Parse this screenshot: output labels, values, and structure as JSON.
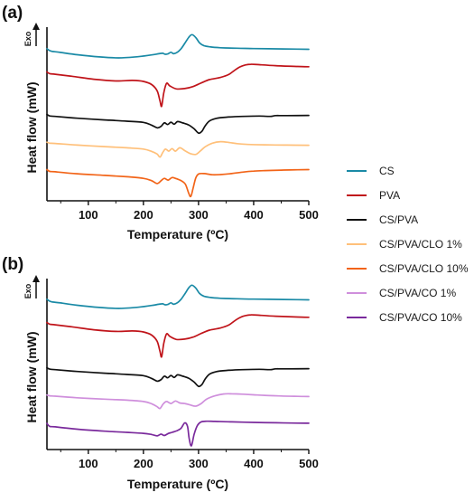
{
  "panels": [
    {
      "label": "(a)",
      "exo_label": "Exo",
      "legend": [
        "CS",
        "PVA",
        "CS/PVA",
        "CS/PVA/CLO 1%",
        "CS/PVA/CLO 10%"
      ]
    },
    {
      "label": "(b)",
      "exo_label": "Exo",
      "legend": [
        "CS",
        "PVA",
        "CS/PVA",
        "CS/PVA/CO 1%",
        "CS/PVA/CO 10%"
      ]
    }
  ],
  "legend": {
    "items": [
      {
        "label": "CS",
        "color": "#1a8aa6"
      },
      {
        "label": "PVA",
        "color": "#c0141a"
      },
      {
        "label": "CS/PVA",
        "color": "#111111"
      },
      {
        "label": "CS/PVA/CLO 1%",
        "color": "#ffc07a"
      },
      {
        "label": "CS/PVA/CLO 10%",
        "color": "#f26418"
      },
      {
        "label": "CS/PVA/CO 1%",
        "color": "#cf8fdc"
      },
      {
        "label": "CS/PVA/CO 10%",
        "color": "#7a2a9c"
      }
    ]
  },
  "chart_data": [
    {
      "type": "line",
      "title": "(a)",
      "xlabel": "Temperature (ºC)",
      "ylabel": "Heat flow (mW)",
      "xlim": [
        25,
        500
      ],
      "xticks": [
        100,
        200,
        300,
        400,
        500
      ],
      "y_ticks_shown": false,
      "arrow_label": "Exo",
      "grid": false,
      "legend_position": "right",
      "series": [
        {
          "name": "CS",
          "color": "#1a8aa6",
          "x": [
            25,
            30,
            35,
            50,
            80,
            120,
            155,
            190,
            215,
            228,
            235,
            240,
            245,
            250,
            255,
            262,
            268,
            275,
            282,
            288,
            295,
            302,
            310,
            322,
            340,
            370,
            400,
            440,
            480,
            500
          ],
          "y": [
            0.93,
            0.73,
            0.65,
            0.55,
            0.32,
            0.1,
            0.0,
            0.12,
            0.3,
            0.42,
            0.46,
            0.36,
            0.42,
            0.56,
            0.42,
            0.58,
            0.9,
            1.45,
            2.05,
            2.34,
            2.05,
            1.5,
            1.22,
            1.1,
            1.02,
            0.97,
            0.94,
            0.91,
            0.88,
            0.86
          ]
        },
        {
          "name": "PVA",
          "color": "#c0141a",
          "x": [
            25,
            30,
            40,
            70,
            110,
            150,
            180,
            200,
            215,
            225,
            230,
            233,
            237,
            242,
            248,
            260,
            275,
            290,
            305,
            320,
            340,
            355,
            365,
            375,
            385,
            395,
            410,
            440,
            480,
            500
          ],
          "y": [
            0.95,
            0.78,
            0.72,
            0.52,
            0.22,
            0.05,
            0.1,
            0.0,
            -0.32,
            -0.95,
            -1.95,
            -2.5,
            -1.15,
            -0.2,
            -0.45,
            -0.75,
            -0.72,
            -0.52,
            -0.15,
            0.18,
            0.4,
            0.7,
            1.1,
            1.45,
            1.65,
            1.72,
            1.68,
            1.58,
            1.5,
            1.47
          ]
        },
        {
          "name": "CS/PVA",
          "color": "#111111",
          "x": [
            25,
            30,
            40,
            80,
            130,
            170,
            200,
            215,
            225,
            232,
            238,
            244,
            250,
            256,
            262,
            272,
            282,
            292,
            300,
            306,
            312,
            320,
            332,
            350,
            380,
            410,
            430,
            440,
            460,
            500
          ],
          "y": [
            0.5,
            0.35,
            0.3,
            0.12,
            -0.05,
            -0.18,
            -0.3,
            -0.58,
            -0.85,
            -0.7,
            -0.35,
            -0.52,
            -0.28,
            -0.48,
            -0.22,
            -0.36,
            -0.55,
            -0.95,
            -1.38,
            -1.2,
            -0.65,
            -0.15,
            0.1,
            0.22,
            0.3,
            0.34,
            0.3,
            0.38,
            0.38,
            0.4
          ]
        },
        {
          "name": "CS/PVA/CLO 1%",
          "color": "#ffc07a",
          "x": [
            25,
            30,
            40,
            80,
            130,
            170,
            200,
            215,
            225,
            230,
            235,
            240,
            246,
            252,
            258,
            266,
            275,
            285,
            295,
            303,
            312,
            325,
            340,
            355,
            370,
            390,
            420,
            460,
            500
          ],
          "y": [
            0.35,
            0.25,
            0.22,
            0.05,
            -0.1,
            -0.22,
            -0.35,
            -0.58,
            -0.85,
            -1.15,
            -0.7,
            -0.35,
            -0.55,
            -0.3,
            -0.55,
            -0.22,
            -0.5,
            -0.8,
            -0.88,
            -0.55,
            -0.12,
            0.25,
            0.4,
            0.32,
            0.2,
            0.12,
            0.08,
            0.05,
            0.04
          ]
        },
        {
          "name": "CS/PVA/CLO 10%",
          "color": "#f26418",
          "x": [
            25,
            30,
            40,
            80,
            130,
            170,
            200,
            215,
            225,
            232,
            238,
            245,
            252,
            260,
            268,
            276,
            282,
            286,
            290,
            295,
            300,
            310,
            325,
            340,
            360,
            380,
            400,
            420,
            450,
            480,
            500
          ],
          "y": [
            0.5,
            0.32,
            0.28,
            0.08,
            -0.08,
            -0.22,
            -0.38,
            -0.62,
            -0.9,
            -0.62,
            -0.38,
            -0.55,
            -0.3,
            -0.42,
            -0.6,
            -0.95,
            -1.85,
            -2.2,
            -1.4,
            -0.35,
            0.05,
            0.1,
            -0.02,
            0.0,
            0.1,
            0.25,
            0.35,
            0.4,
            0.45,
            0.48,
            0.5
          ]
        }
      ]
    },
    {
      "type": "line",
      "title": "(b)",
      "xlabel": "Temperature (ºC)",
      "ylabel": "Heat flow (mW)",
      "xlim": [
        25,
        500
      ],
      "xticks": [
        100,
        200,
        300,
        400,
        500
      ],
      "y_ticks_shown": false,
      "arrow_label": "Exo",
      "grid": false,
      "legend_position": "right",
      "series": [
        {
          "name": "CS",
          "color": "#1a8aa6",
          "x": [
            25,
            30,
            35,
            50,
            80,
            120,
            155,
            190,
            215,
            228,
            235,
            240,
            245,
            250,
            255,
            262,
            268,
            275,
            282,
            288,
            295,
            302,
            310,
            322,
            340,
            370,
            400,
            440,
            480,
            500
          ],
          "y": [
            0.93,
            0.73,
            0.65,
            0.55,
            0.32,
            0.1,
            0.0,
            0.12,
            0.3,
            0.42,
            0.46,
            0.36,
            0.42,
            0.56,
            0.42,
            0.58,
            0.9,
            1.45,
            2.05,
            2.34,
            2.05,
            1.5,
            1.22,
            1.1,
            1.02,
            0.97,
            0.94,
            0.91,
            0.88,
            0.86
          ]
        },
        {
          "name": "PVA",
          "color": "#c0141a",
          "x": [
            25,
            30,
            40,
            70,
            110,
            150,
            180,
            200,
            215,
            225,
            230,
            233,
            237,
            242,
            248,
            260,
            275,
            290,
            305,
            320,
            340,
            355,
            365,
            375,
            385,
            395,
            410,
            440,
            480,
            500
          ],
          "y": [
            0.95,
            0.78,
            0.72,
            0.52,
            0.22,
            0.05,
            0.1,
            0.0,
            -0.32,
            -0.95,
            -1.95,
            -2.5,
            -1.15,
            -0.2,
            -0.45,
            -0.75,
            -0.72,
            -0.52,
            -0.15,
            0.18,
            0.4,
            0.7,
            1.1,
            1.45,
            1.65,
            1.72,
            1.68,
            1.58,
            1.5,
            1.47
          ]
        },
        {
          "name": "CS/PVA",
          "color": "#111111",
          "x": [
            25,
            30,
            40,
            80,
            130,
            170,
            200,
            215,
            225,
            232,
            238,
            244,
            250,
            256,
            262,
            272,
            282,
            292,
            300,
            306,
            312,
            320,
            332,
            350,
            380,
            410,
            430,
            440,
            460,
            500
          ],
          "y": [
            0.5,
            0.35,
            0.3,
            0.12,
            -0.05,
            -0.18,
            -0.3,
            -0.58,
            -0.85,
            -0.7,
            -0.35,
            -0.52,
            -0.28,
            -0.48,
            -0.22,
            -0.36,
            -0.55,
            -0.95,
            -1.38,
            -1.2,
            -0.65,
            -0.15,
            0.1,
            0.22,
            0.3,
            0.34,
            0.3,
            0.38,
            0.38,
            0.4
          ]
        },
        {
          "name": "CS/PVA/CO 1%",
          "color": "#cf8fdc",
          "x": [
            25,
            30,
            40,
            80,
            130,
            170,
            200,
            215,
            225,
            230,
            236,
            242,
            250,
            258,
            266,
            275,
            285,
            295,
            305,
            315,
            330,
            345,
            360,
            380,
            400,
            420,
            450,
            480,
            500
          ],
          "y": [
            0.3,
            0.22,
            0.18,
            0.02,
            -0.12,
            -0.22,
            -0.35,
            -0.58,
            -0.88,
            -1.05,
            -0.6,
            -0.35,
            -0.55,
            -0.3,
            -0.5,
            -0.55,
            -0.7,
            -0.82,
            -0.55,
            -0.1,
            0.22,
            0.4,
            0.42,
            0.38,
            0.32,
            0.26,
            0.2,
            0.16,
            0.15
          ]
        },
        {
          "name": "CS/PVA/CO 10%",
          "color": "#7a2a9c",
          "x": [
            25,
            30,
            40,
            80,
            130,
            170,
            200,
            215,
            225,
            232,
            238,
            245,
            252,
            260,
            268,
            275,
            280,
            283,
            287,
            292,
            298,
            305,
            315,
            330,
            360,
            400,
            440,
            480,
            500
          ],
          "y": [
            0.9,
            0.6,
            0.55,
            0.32,
            0.12,
            0.0,
            -0.1,
            -0.22,
            -0.35,
            -0.18,
            -0.32,
            -0.12,
            0.0,
            0.15,
            0.4,
            0.95,
            0.6,
            -0.6,
            -1.35,
            -0.2,
            0.7,
            1.05,
            1.12,
            1.1,
            1.05,
            1.0,
            0.96,
            0.93,
            0.92
          ]
        }
      ]
    }
  ]
}
